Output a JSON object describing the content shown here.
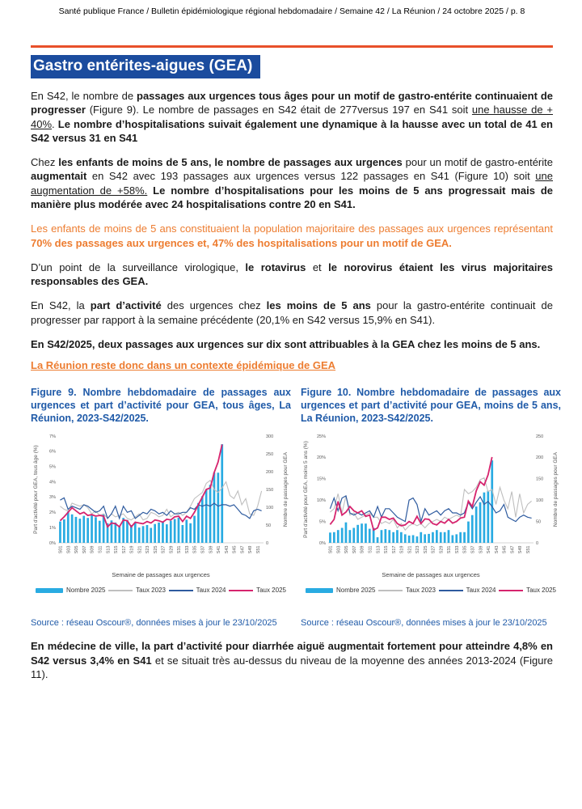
{
  "page": {
    "header": "Santé publique France / Bulletin épidémiologique régional hebdomadaire / Semaine 42 / La Réunion / 24 octobre 2025 / p. 8"
  },
  "section": {
    "title": "Gastro entérites-aigues (GEA)"
  },
  "colors": {
    "accent_orange_rule": "#e8502a",
    "title_background_blue": "#1b4c9e",
    "caption_blue": "#1f5aa8",
    "orange_text": "#ed7d31",
    "bar_light_blue": "#29abe2",
    "line_gray_2023": "#bfbfbf",
    "line_navy_2024": "#2e5b9f",
    "line_pink_2025": "#d6246e"
  },
  "paragraphs": {
    "p1": {
      "s1": "En S42, le nombre de ",
      "s2": "passages aux urgences tous âges pour un motif de gastro-entérite continuaient de progresser",
      "s3": " (Figure 9). Le nombre de passages en S42 était de 277versus 197 en S41 soit ",
      "s4": "une hausse de + 40%",
      "s5": ". ",
      "s6": "Le nombre d’hospitalisations suivait également une dynamique à la hausse avec un total de 41 en S42 versus 31 en S41"
    },
    "p2": {
      "s1": "Chez ",
      "s2": "les enfants de moins de 5 ans, le nombre de passages aux urgences",
      "s3": " pour un motif de gastro-entérite ",
      "s4": "augmentait",
      "s5": " en S42 avec 193 passages aux urgences versus 122 passages en S41 (Figure 10) soit ",
      "s6": "une augmentation de +58%.",
      "s7": " ",
      "s8": "Le nombre d’hospitalisations pour les moins de 5 ans progressait mais de manière plus modérée avec 24 hospitalisations contre 20 en S41."
    },
    "p3": {
      "s1": "Les enfants de moins de 5 ans constituaient la population majoritaire des passages aux urgences représentant ",
      "s2": "70% des passages aux urgences et, 47% des hospitalisations pour un motif de GEA",
      "s3": "."
    },
    "p4": {
      "s1": "D’un point de la surveillance virologique, ",
      "s2": "le rotavirus",
      "s3": " et ",
      "s4": "le norovirus étaient les virus majoritaires responsables des GEA."
    },
    "p5": {
      "s1": "En S42, la ",
      "s2": "part d’activité",
      "s3": " des urgences chez ",
      "s4": "les moins de 5 ans",
      "s5": " pour la gastro-entérite continuait de progresser par rapport à la semaine précédente (20,1% en S42 versus 15,9% en S41)."
    },
    "p6": "En S42/2025, deux passages aux urgences sur dix sont attribuables à la GEA chez les moins de 5 ans.",
    "p7": "La Réunion reste donc dans un contexte épidémique de GEA"
  },
  "figures": {
    "fig9": {
      "caption": "Figure 9. Nombre hebdomadaire de passages aux urgences et part d’activité pour GEA, tous âges, La Réunion, 2023-S42/2025.",
      "source": "Source : réseau Oscour®, données mises à jour le 23/10/2025"
    },
    "fig10": {
      "caption": "Figure 10. Nombre hebdomadaire de passages aux urgences et part d’activité pour GEA, moins de 5 ans, La Réunion, 2023-S42/2025.",
      "source": "Source : réseau Oscour®, données mises à jour le 23/10/2025"
    }
  },
  "closing": {
    "s1": "En médecine de ville, la part d’activité pour diarrhée aiguë augmentait fortement pour atteindre 4,8% en S42 versus 3,4% en S41",
    "s2": " et se situait très au-dessus du niveau de la moyenne des années 2013-2024 (Figure 11)."
  },
  "chart_data": [
    {
      "type": "bar",
      "title": "Nombre hebdomadaire de passages aux urgences et part d’activité pour GEA, tous âges, La Réunion, 2023-S42/2025",
      "x_count": 52,
      "x_tick_labels": [
        "S01",
        "S03",
        "S05",
        "S07",
        "S09",
        "S11",
        "S13",
        "S15",
        "S17",
        "S19",
        "S21",
        "S23",
        "S25",
        "S27",
        "S29",
        "S31",
        "S33",
        "S35",
        "S37",
        "S39",
        "S41",
        "S43",
        "S45",
        "S47",
        "S49",
        "S51"
      ],
      "xlabel": "Semaine de passages aux urgences",
      "ylabel_left": "Part d'activité pour GEA, tous âge (%)",
      "ylabel_right": "Nombre de passages pour GEA",
      "left_axis": {
        "max": 7,
        "step": 1,
        "suffix": "%"
      },
      "right_axis": {
        "max": 300,
        "step": 50
      },
      "legend_position": "bottom",
      "series": [
        {
          "name": "Nombre 2025",
          "type": "bar",
          "axis": "right",
          "color": "#29abe2",
          "values": [
            60,
            66,
            88,
            80,
            73,
            68,
            76,
            70,
            79,
            72,
            62,
            81,
            55,
            63,
            57,
            45,
            70,
            64,
            50,
            57,
            43,
            47,
            50,
            42,
            53,
            57,
            59,
            52,
            62,
            67,
            71,
            50,
            65,
            55,
            76,
            112,
            131,
            149,
            163,
            197,
            197,
            277
          ]
        },
        {
          "name": "Taux 2023",
          "type": "line",
          "axis": "left",
          "color": "#bfbfbf",
          "width": 1.1,
          "values": [
            2.4,
            2.2,
            2.1,
            2.6,
            2.5,
            2.4,
            2.5,
            2.3,
            1.9,
            2.1,
            1.8,
            1.9,
            1.6,
            1.9,
            1.7,
            1.8,
            1.9,
            1.6,
            1.5,
            1.7,
            1.9,
            1.5,
            1.6,
            2.0,
            1.9,
            1.7,
            1.8,
            2.2,
            1.7,
            1.9,
            2.0,
            1.8,
            2.0,
            2.4,
            2.9,
            3.1,
            3.3,
            3.9,
            4.1,
            3.5,
            3.3,
            3.6,
            4.0,
            3.1,
            2.9,
            3.4,
            2.5,
            2.9,
            1.9,
            1.8,
            2.4,
            3.4
          ]
        },
        {
          "name": "Taux 2024",
          "type": "line",
          "axis": "left",
          "color": "#2e5b9f",
          "width": 1.2,
          "values": [
            2.8,
            2.95,
            2.2,
            2.4,
            2.3,
            2.2,
            2.5,
            2.4,
            2.2,
            2.0,
            2.1,
            2.4,
            1.6,
            1.9,
            2.4,
            1.6,
            2.4,
            2.0,
            2.1,
            1.6,
            1.8,
            2.0,
            1.9,
            2.2,
            2.1,
            1.9,
            2.0,
            1.8,
            2.1,
            1.9,
            1.9,
            2.0,
            2.0,
            2.3,
            2.2,
            2.5,
            2.4,
            2.5,
            2.4,
            2.6,
            2.4,
            2.5,
            2.5,
            2.4,
            2.5,
            2.2,
            1.9,
            1.8,
            1.6,
            2.1,
            2.2,
            2.1
          ]
        },
        {
          "name": "Taux 2025",
          "type": "line",
          "axis": "left",
          "color": "#d6246e",
          "width": 1.8,
          "values": [
            1.45,
            1.7,
            2.0,
            2.3,
            2.1,
            1.9,
            2.0,
            1.8,
            1.85,
            1.75,
            1.8,
            1.75,
            1.05,
            1.3,
            1.25,
            1.05,
            1.5,
            1.45,
            1.05,
            1.35,
            1.3,
            1.25,
            1.4,
            1.3,
            1.5,
            1.45,
            1.35,
            1.55,
            1.5,
            1.7,
            1.75,
            1.4,
            1.75,
            1.6,
            2.0,
            2.5,
            3.0,
            3.5,
            3.6,
            4.6,
            5.3,
            6.45
          ]
        }
      ]
    },
    {
      "type": "bar",
      "title": "Nombre hebdomadaire de passages aux urgences et part d’activité pour GEA, moins de 5 ans, La Réunion, 2023-S42/2025",
      "x_count": 52,
      "x_tick_labels": [
        "S01",
        "S03",
        "S05",
        "S07",
        "S09",
        "S11",
        "S13",
        "S15",
        "S17",
        "S19",
        "S21",
        "S23",
        "S25",
        "S27",
        "S29",
        "S31",
        "S33",
        "S35",
        "S37",
        "S39",
        "S41",
        "S43",
        "S45",
        "S47",
        "S49",
        "S51"
      ],
      "xlabel": "Semaine de passages aux urgences",
      "ylabel_left": "Part d'activité pour GEA, moins 5 ans (%)",
      "ylabel_right": "Nombre de passages pour GEA",
      "left_axis": {
        "max": 25,
        "step": 5,
        "suffix": "%"
      },
      "right_axis": {
        "max": 250,
        "step": 50
      },
      "legend_position": "bottom",
      "series": [
        {
          "name": "Nombre 2025",
          "type": "bar",
          "axis": "right",
          "color": "#29abe2",
          "values": [
            24,
            25,
            30,
            35,
            48,
            30,
            35,
            42,
            45,
            45,
            33,
            35,
            13,
            30,
            32,
            30,
            25,
            30,
            25,
            20,
            17,
            18,
            15,
            25,
            20,
            21,
            25,
            30,
            25,
            25,
            30,
            18,
            20,
            25,
            25,
            50,
            65,
            85,
            95,
            118,
            122,
            193
          ]
        },
        {
          "name": "Taux 2023",
          "type": "line",
          "axis": "left",
          "color": "#bfbfbf",
          "width": 1.1,
          "values": [
            7.2,
            8.0,
            11.5,
            7.0,
            11.0,
            6.5,
            7.0,
            5.5,
            6.0,
            6.5,
            7.0,
            6.0,
            6.0,
            4.5,
            5.0,
            4.5,
            5.5,
            3.5,
            4.5,
            3.0,
            4.0,
            4.5,
            4.0,
            4.5,
            3.5,
            4.5,
            5.0,
            5.5,
            5.0,
            6.0,
            5.5,
            6.0,
            6.5,
            6.0,
            12.5,
            11.5,
            12.0,
            13.0,
            14.8,
            15.2,
            12.0,
            12.5,
            9.0,
            13.0,
            10.0,
            8.0,
            12.0,
            6.0,
            11.5,
            7.0,
            9.0,
            9.8
          ]
        },
        {
          "name": "Taux 2024",
          "type": "line",
          "axis": "left",
          "color": "#2e5b9f",
          "width": 1.2,
          "values": [
            8.0,
            10.5,
            7.5,
            10.5,
            11.0,
            7.0,
            6.5,
            7.0,
            6.5,
            7.0,
            7.5,
            6.0,
            8.5,
            6.0,
            8.0,
            8.0,
            7.0,
            6.0,
            5.5,
            5.0,
            10.0,
            10.5,
            9.0,
            5.0,
            8.0,
            6.5,
            7.0,
            7.5,
            6.5,
            7.5,
            8.0,
            7.0,
            7.0,
            6.5,
            7.0,
            9.5,
            8.0,
            9.5,
            10.8,
            9.0,
            9.7,
            8.5,
            7.0,
            7.5,
            9.0,
            6.0,
            5.5,
            5.0,
            6.0,
            6.5,
            6.0,
            5.8
          ]
        },
        {
          "name": "Taux 2025",
          "type": "line",
          "axis": "left",
          "color": "#d6246e",
          "width": 1.8,
          "values": [
            4.3,
            5.5,
            9.7,
            6.5,
            7.2,
            8.5,
            7.5,
            7.0,
            7.5,
            6.2,
            6.5,
            3.0,
            3.5,
            6.0,
            6.0,
            5.5,
            5.8,
            4.5,
            4.0,
            4.2,
            5.0,
            4.5,
            6.2,
            4.5,
            5.6,
            5.5,
            4.5,
            4.2,
            5.0,
            4.6,
            5.5,
            4.6,
            5.0,
            5.8,
            6.0,
            9.8,
            8.5,
            12.2,
            14.3,
            13.5,
            15.9,
            20.1
          ]
        }
      ]
    }
  ]
}
